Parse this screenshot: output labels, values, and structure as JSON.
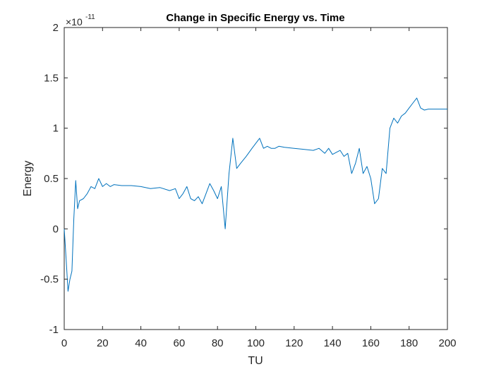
{
  "chart_data": {
    "type": "line",
    "title": "Change in Specific Energy vs. Time",
    "xlabel": "TU",
    "ylabel": "Energy",
    "exponent_base": "×10",
    "exponent_power": "-11",
    "xlim": [
      0,
      200
    ],
    "ylim": [
      -1,
      2
    ],
    "xticks": [
      0,
      20,
      40,
      60,
      80,
      100,
      120,
      140,
      160,
      180,
      200
    ],
    "xtick_labels": [
      "0",
      "20",
      "40",
      "60",
      "80",
      "100",
      "120",
      "140",
      "160",
      "180",
      "200"
    ],
    "yticks": [
      -1,
      -0.5,
      0,
      0.5,
      1,
      1.5,
      2
    ],
    "ytick_labels": [
      "-1",
      "-0.5",
      "0",
      "0.5",
      "1",
      "1.5",
      "2"
    ],
    "grid": false,
    "line_color": "#0072BD",
    "axis_color": "#262626",
    "series": [
      {
        "x": [
          0,
          1,
          2,
          3,
          4,
          5,
          6,
          7,
          8,
          10,
          12,
          14,
          16,
          18,
          20,
          22,
          24,
          26,
          30,
          35,
          40,
          45,
          50,
          55,
          58,
          60,
          62,
          64,
          66,
          68,
          70,
          72,
          74,
          76,
          78,
          80,
          82,
          84,
          86,
          88,
          90,
          92,
          95,
          98,
          100,
          102,
          104,
          106,
          108,
          110,
          112,
          115,
          120,
          125,
          130,
          133,
          136,
          138,
          140,
          142,
          144,
          146,
          148,
          150,
          152,
          154,
          156,
          158,
          160,
          162,
          164,
          166,
          168,
          170,
          172,
          174,
          176,
          178,
          180,
          182,
          184,
          186,
          188,
          190,
          195,
          200
        ],
        "y": [
          0.0,
          -0.3,
          -0.62,
          -0.5,
          -0.42,
          0.1,
          0.48,
          0.2,
          0.28,
          0.3,
          0.35,
          0.42,
          0.4,
          0.5,
          0.42,
          0.45,
          0.42,
          0.44,
          0.43,
          0.43,
          0.42,
          0.4,
          0.41,
          0.38,
          0.4,
          0.3,
          0.35,
          0.42,
          0.3,
          0.28,
          0.32,
          0.25,
          0.35,
          0.45,
          0.38,
          0.3,
          0.42,
          0.0,
          0.55,
          0.9,
          0.6,
          0.65,
          0.72,
          0.8,
          0.85,
          0.9,
          0.8,
          0.82,
          0.8,
          0.8,
          0.82,
          0.81,
          0.8,
          0.79,
          0.78,
          0.8,
          0.75,
          0.8,
          0.74,
          0.76,
          0.78,
          0.72,
          0.75,
          0.55,
          0.65,
          0.8,
          0.55,
          0.62,
          0.5,
          0.25,
          0.3,
          0.6,
          0.55,
          1.0,
          1.1,
          1.05,
          1.12,
          1.15,
          1.2,
          1.25,
          1.3,
          1.2,
          1.18,
          1.19,
          1.19,
          1.19
        ]
      }
    ]
  }
}
